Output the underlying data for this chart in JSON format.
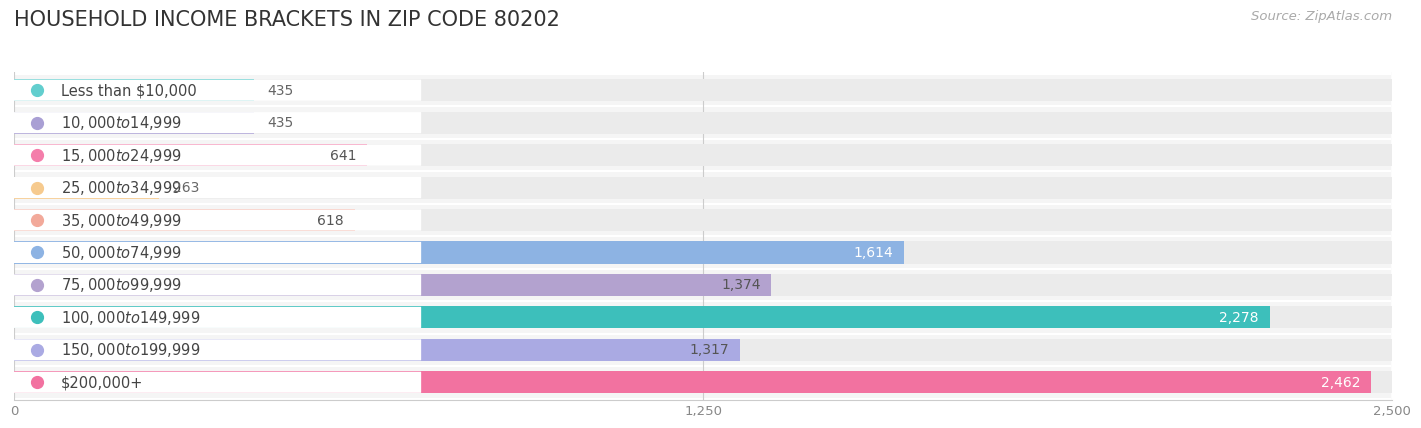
{
  "title": "HOUSEHOLD INCOME BRACKETS IN ZIP CODE 80202",
  "source": "Source: ZipAtlas.com",
  "categories": [
    "Less than $10,000",
    "$10,000 to $14,999",
    "$15,000 to $24,999",
    "$25,000 to $34,999",
    "$35,000 to $49,999",
    "$50,000 to $74,999",
    "$75,000 to $99,999",
    "$100,000 to $149,999",
    "$150,000 to $199,999",
    "$200,000+"
  ],
  "values": [
    435,
    435,
    641,
    263,
    618,
    1614,
    1374,
    2278,
    1317,
    2462
  ],
  "bar_colors": [
    "#62cece",
    "#a99fd4",
    "#f47daa",
    "#f6ca8e",
    "#f2a99a",
    "#8db3e3",
    "#b3a2cf",
    "#3dbfbb",
    "#aaaae3",
    "#f272a0"
  ],
  "value_label_white": [
    false,
    false,
    false,
    false,
    false,
    true,
    false,
    true,
    false,
    true
  ],
  "xlim": [
    0,
    2500
  ],
  "xticks": [
    0,
    1250,
    2500
  ],
  "bg_color": "#ffffff",
  "bar_bg_color": "#ebebeb",
  "row_bg_color": "#f5f5f5",
  "title_fontsize": 15,
  "label_fontsize": 10.5,
  "value_fontsize": 10,
  "source_fontsize": 9.5,
  "bar_height": 0.68
}
